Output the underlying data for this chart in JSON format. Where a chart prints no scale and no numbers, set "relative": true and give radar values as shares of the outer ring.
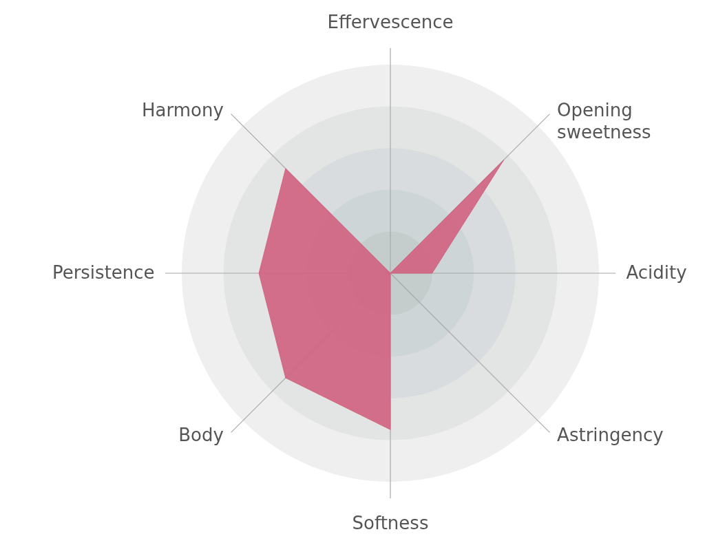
{
  "chart_data": {
    "type": "radar",
    "relative": true,
    "grid": true,
    "categories": [
      "Effervescence",
      "Opening sweetness",
      "Acidity",
      "Astringency",
      "Softness",
      "Body",
      "Persistence",
      "Harmony"
    ],
    "series": [
      {
        "color": "#d16482",
        "values": [
          0,
          0.77,
          0.2,
          0,
          0.75,
          0.71,
          0.63,
          0.71
        ]
      }
    ]
  }
}
